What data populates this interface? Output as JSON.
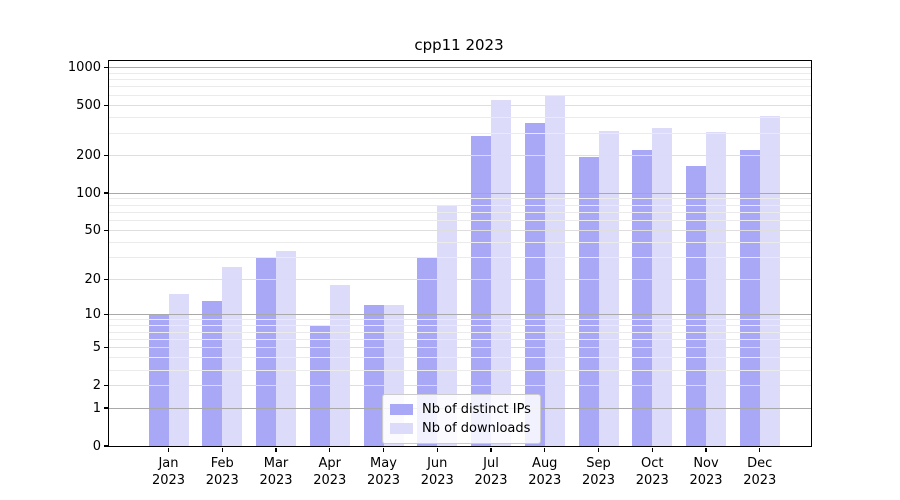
{
  "chart_data": {
    "type": "bar",
    "title": "cpp11 2023",
    "categories": [
      "Jan 2023",
      "Feb 2023",
      "Mar 2023",
      "Apr 2023",
      "May 2023",
      "Jun 2023",
      "Jul 2023",
      "Aug 2023",
      "Sep 2023",
      "Oct 2023",
      "Nov 2023",
      "Dec 2023"
    ],
    "series": [
      {
        "name": "Nb of distinct IPs",
        "color": "#a8a8f6",
        "values": [
          10,
          13,
          30,
          8,
          12,
          30,
          285,
          360,
          195,
          220,
          165,
          220
        ]
      },
      {
        "name": "Nb of downloads",
        "color": "#dcdcfa",
        "values": [
          15,
          25,
          34,
          18,
          12,
          80,
          550,
          590,
          310,
          330,
          305,
          410
        ]
      }
    ],
    "xlabel": "",
    "ylabel": "",
    "yscale": "log1p",
    "ylim": [
      0,
      1120
    ],
    "y_ticks": [
      0,
      1,
      2,
      5,
      10,
      20,
      50,
      100,
      200,
      500,
      1000
    ],
    "y_tick_labels": [
      "0",
      "1",
      "2",
      "5",
      "10",
      "20",
      "50",
      "100",
      "200",
      "500",
      "1000"
    ],
    "y_minor_gridlines": [
      3,
      4,
      6,
      7,
      8,
      9,
      30,
      40,
      60,
      70,
      80,
      90,
      300,
      400,
      600,
      700,
      800,
      900
    ],
    "grid": "on",
    "legend_position": "lower center"
  },
  "legend": {
    "entries": [
      "Nb of distinct IPs",
      "Nb of downloads"
    ]
  },
  "colors": {
    "bar_dark": "#a8a8f6",
    "bar_light": "#dcdcfa",
    "grid_decade": "#a9a9a9",
    "grid_labeled": "#dedede",
    "grid_minor": "#ebebeb",
    "frame": "#000000",
    "background": "#ffffff"
  }
}
